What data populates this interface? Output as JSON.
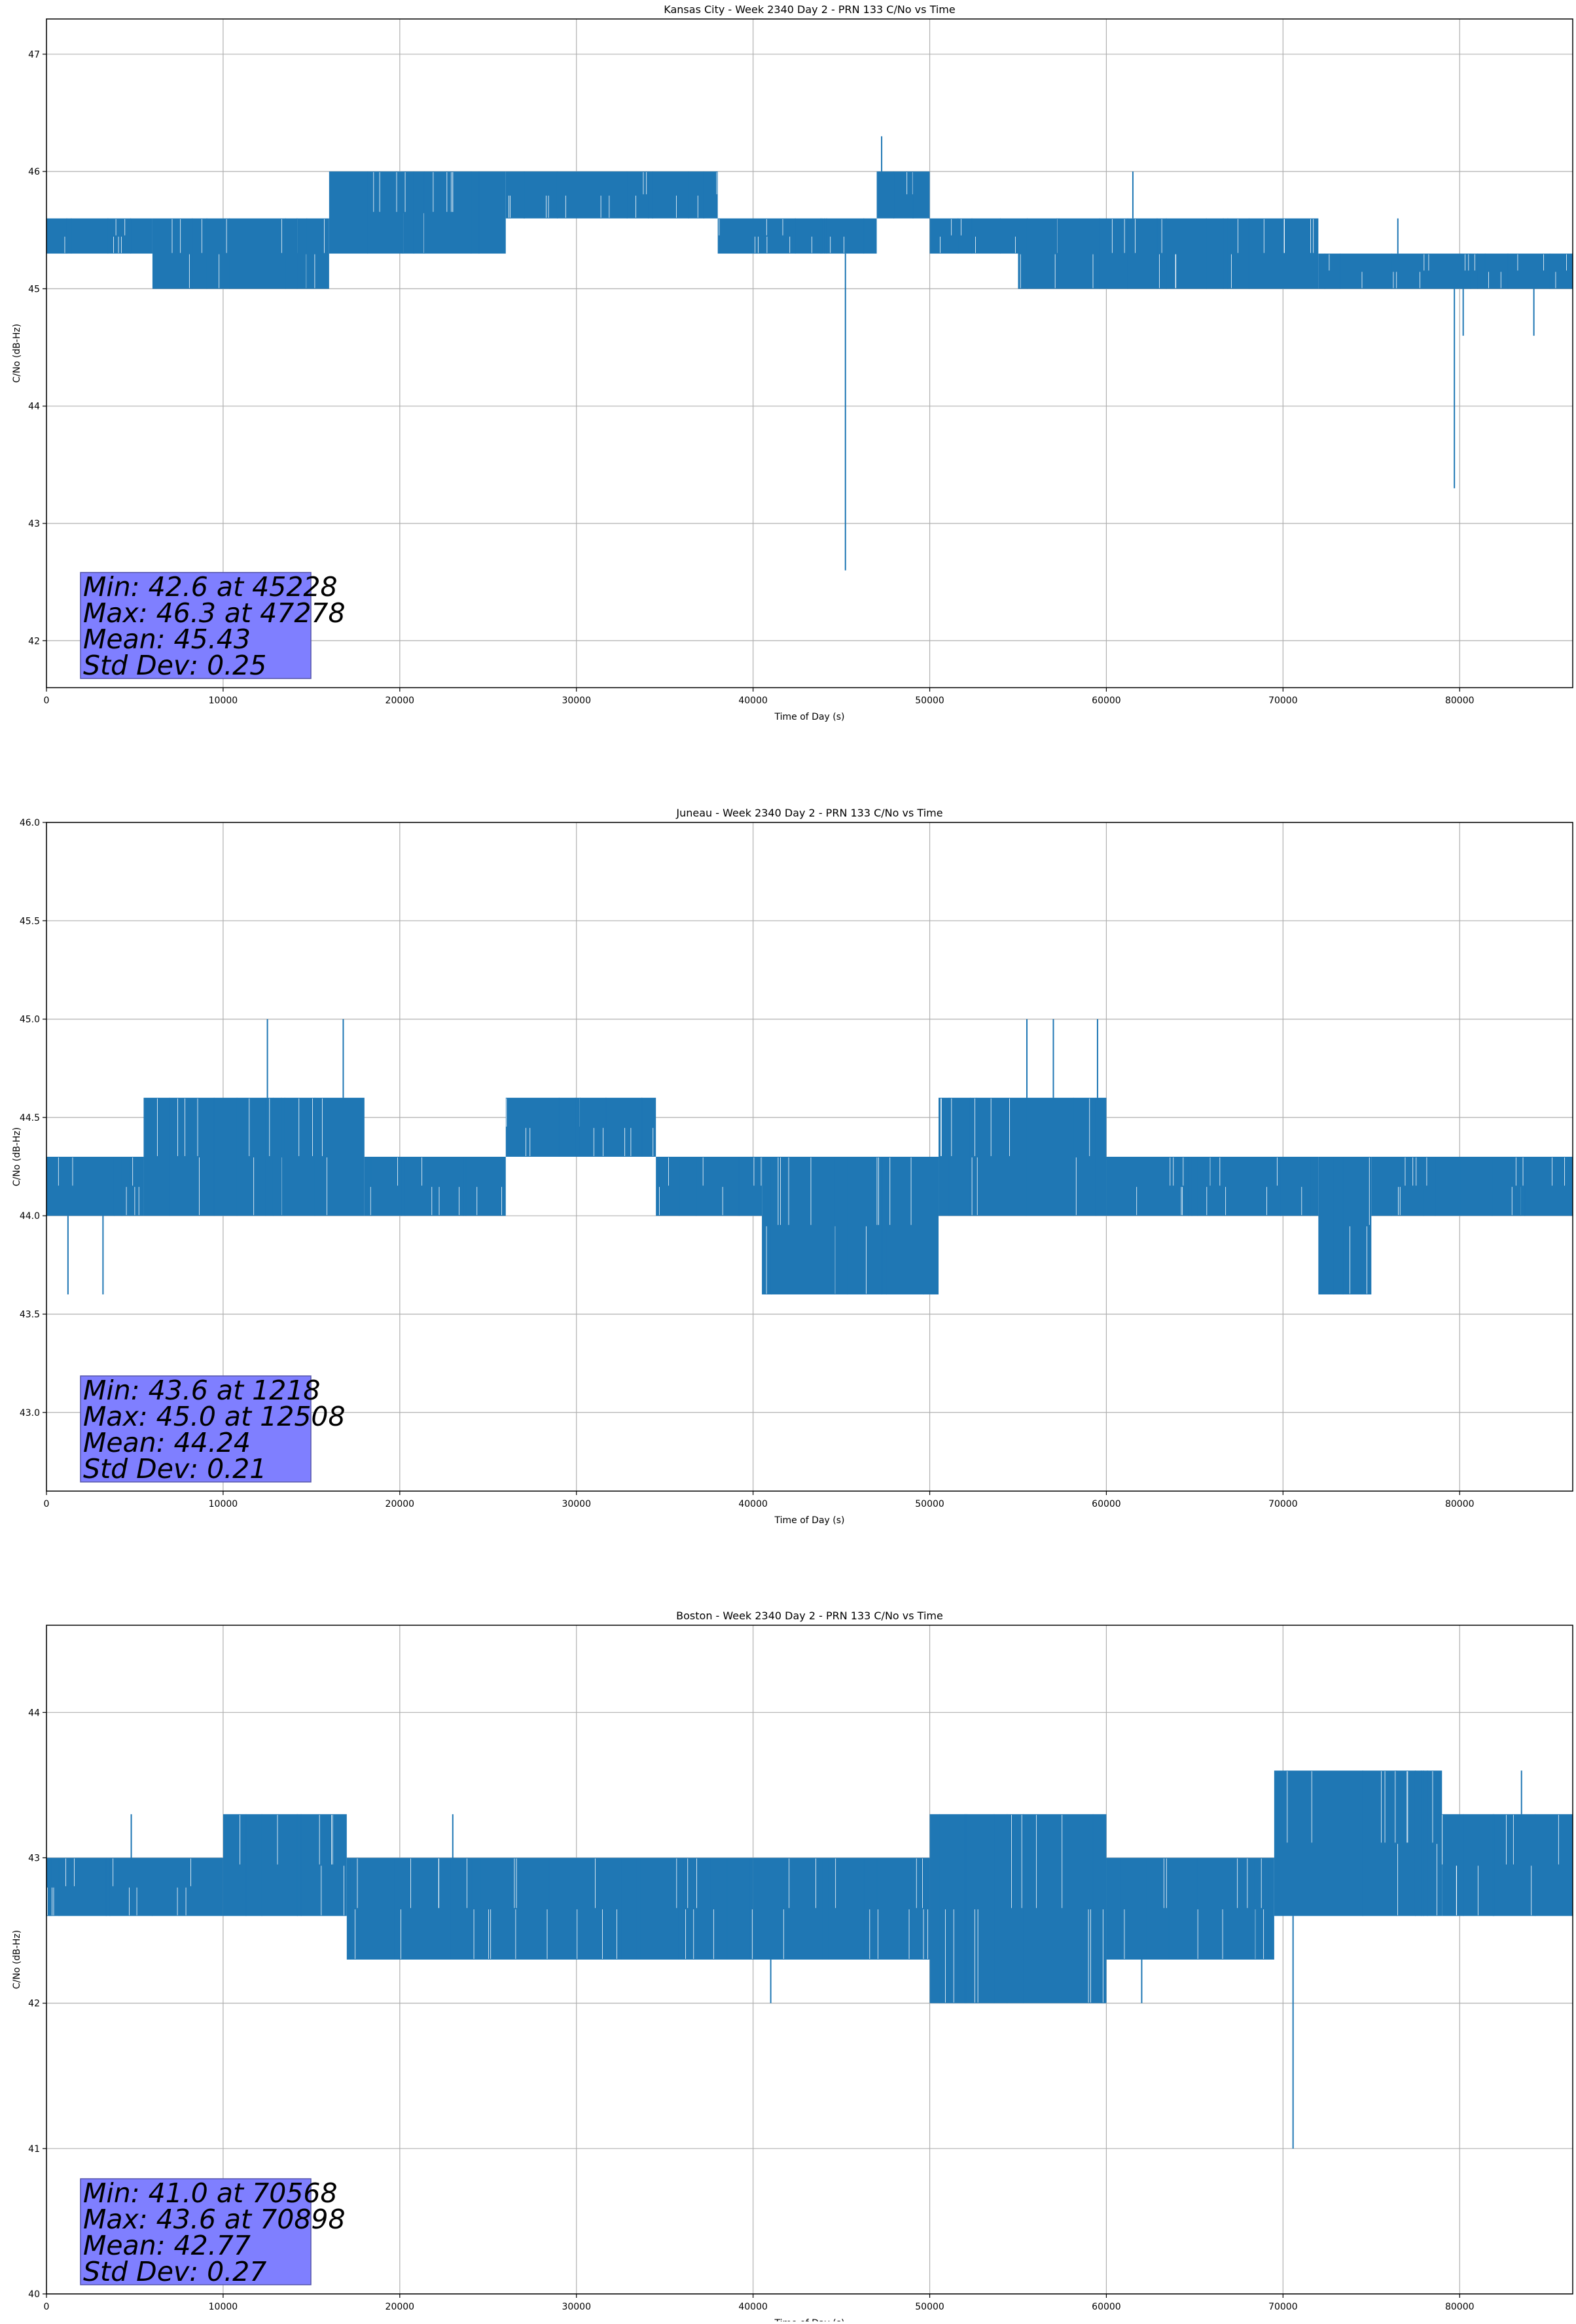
{
  "chart_data": [
    {
      "type": "line",
      "title": "Kansas City - Week 2340 Day 2 - PRN 133 C/No vs Time",
      "xlabel": "Time of Day (s)",
      "ylabel": "C/No (dB-Hz)",
      "xlim": [
        0,
        86400
      ],
      "ylim": [
        41.6,
        47.3
      ],
      "xticks": [
        0,
        10000,
        20000,
        30000,
        40000,
        50000,
        60000,
        70000,
        80000
      ],
      "yticks": [
        42,
        43,
        44,
        45,
        46,
        47
      ],
      "grid": true,
      "series_color": "#1f77b4",
      "segments": [
        {
          "x": [
            0,
            6000
          ],
          "low": 45.3,
          "high": 45.6
        },
        {
          "x": [
            6000,
            16000
          ],
          "low": 45.0,
          "high": 45.6
        },
        {
          "x": [
            16000,
            26000
          ],
          "low": 45.3,
          "high": 46.0
        },
        {
          "x": [
            26000,
            38000
          ],
          "low": 45.6,
          "high": 46.0
        },
        {
          "x": [
            38000,
            47000
          ],
          "low": 45.3,
          "high": 45.6
        },
        {
          "x": [
            47000,
            50000
          ],
          "low": 45.6,
          "high": 46.0
        },
        {
          "x": [
            50000,
            55000
          ],
          "low": 45.3,
          "high": 45.6
        },
        {
          "x": [
            55000,
            72000
          ],
          "low": 45.0,
          "high": 45.6
        },
        {
          "x": [
            72000,
            86400
          ],
          "low": 45.0,
          "high": 45.3
        }
      ],
      "spikes": [
        [
          45228,
          42.6
        ],
        [
          47278,
          46.3
        ],
        [
          79700,
          43.3
        ],
        [
          80200,
          44.6
        ],
        [
          84200,
          44.6
        ],
        [
          76500,
          45.6
        ],
        [
          61500,
          46.0
        ]
      ],
      "stats": {
        "min": "Min: 42.6 at 45228",
        "max": "Max: 46.3 at 47278",
        "mean": "Mean: 45.43",
        "std": "Std Dev: 0.25"
      }
    },
    {
      "type": "line",
      "title": "Juneau - Week 2340 Day 2 - PRN 133 C/No vs Time",
      "xlabel": "Time of Day (s)",
      "ylabel": "C/No (dB-Hz)",
      "xlim": [
        0,
        86400
      ],
      "ylim": [
        42.6,
        46.0
      ],
      "xticks": [
        0,
        10000,
        20000,
        30000,
        40000,
        50000,
        60000,
        70000,
        80000
      ],
      "yticks": [
        43.0,
        43.5,
        44.0,
        44.5,
        45.0,
        45.5,
        46.0
      ],
      "ytick_labels": [
        "43.0",
        "43.5",
        "44.0",
        "44.5",
        "45.0",
        "45.5",
        "46.0"
      ],
      "grid": true,
      "series_color": "#1f77b4",
      "segments": [
        {
          "x": [
            0,
            5500
          ],
          "low": 44.0,
          "high": 44.3
        },
        {
          "x": [
            5500,
            18000
          ],
          "low": 44.0,
          "high": 44.6
        },
        {
          "x": [
            18000,
            26000
          ],
          "low": 44.0,
          "high": 44.3
        },
        {
          "x": [
            26000,
            34500
          ],
          "low": 44.3,
          "high": 44.6
        },
        {
          "x": [
            34500,
            40500
          ],
          "low": 44.0,
          "high": 44.3
        },
        {
          "x": [
            40500,
            50500
          ],
          "low": 43.6,
          "high": 44.3
        },
        {
          "x": [
            50500,
            60000
          ],
          "low": 44.0,
          "high": 44.6
        },
        {
          "x": [
            60000,
            72000
          ],
          "low": 44.0,
          "high": 44.3
        },
        {
          "x": [
            72000,
            75000
          ],
          "low": 43.6,
          "high": 44.3
        },
        {
          "x": [
            75000,
            86400
          ],
          "low": 44.0,
          "high": 44.3
        }
      ],
      "spikes": [
        [
          1218,
          43.6
        ],
        [
          3200,
          43.6
        ],
        [
          12508,
          45.0
        ],
        [
          16800,
          45.0
        ],
        [
          55500,
          45.0
        ],
        [
          57000,
          45.0
        ],
        [
          59500,
          45.0
        ]
      ],
      "stats": {
        "min": "Min: 43.6 at 1218",
        "max": "Max: 45.0 at 12508",
        "mean": "Mean: 44.24",
        "std": "Std Dev: 0.21"
      }
    },
    {
      "type": "line",
      "title": "Boston - Week 2340 Day 2 - PRN 133 C/No vs Time",
      "xlabel": "Time of Day (s)",
      "ylabel": "C/No (dB-Hz)",
      "xlim": [
        0,
        86400
      ],
      "ylim": [
        40.0,
        44.6
      ],
      "xticks": [
        0,
        10000,
        20000,
        30000,
        40000,
        50000,
        60000,
        70000,
        80000
      ],
      "yticks": [
        40,
        41,
        42,
        43,
        44
      ],
      "grid": true,
      "series_color": "#1f77b4",
      "segments": [
        {
          "x": [
            0,
            10000
          ],
          "low": 42.6,
          "high": 43.0
        },
        {
          "x": [
            10000,
            17000
          ],
          "low": 42.6,
          "high": 43.3
        },
        {
          "x": [
            17000,
            40000
          ],
          "low": 42.3,
          "high": 43.0
        },
        {
          "x": [
            40000,
            50000
          ],
          "low": 42.3,
          "high": 43.0
        },
        {
          "x": [
            50000,
            60000
          ],
          "low": 42.0,
          "high": 43.3
        },
        {
          "x": [
            60000,
            69500
          ],
          "low": 42.3,
          "high": 43.0
        },
        {
          "x": [
            69500,
            79000
          ],
          "low": 42.6,
          "high": 43.6
        },
        {
          "x": [
            79000,
            86400
          ],
          "low": 42.6,
          "high": 43.3
        }
      ],
      "spikes": [
        [
          70568,
          41.0
        ],
        [
          70898,
          43.6
        ],
        [
          4800,
          43.3
        ],
        [
          23000,
          43.3
        ],
        [
          41000,
          42.0
        ],
        [
          52000,
          42.0
        ],
        [
          62000,
          42.0
        ],
        [
          83500,
          43.6
        ]
      ],
      "stats": {
        "min": "Min: 41.0 at 70568",
        "max": "Max: 43.6 at 70898",
        "mean": "Mean: 42.77",
        "std": "Std Dev: 0.27"
      }
    }
  ]
}
